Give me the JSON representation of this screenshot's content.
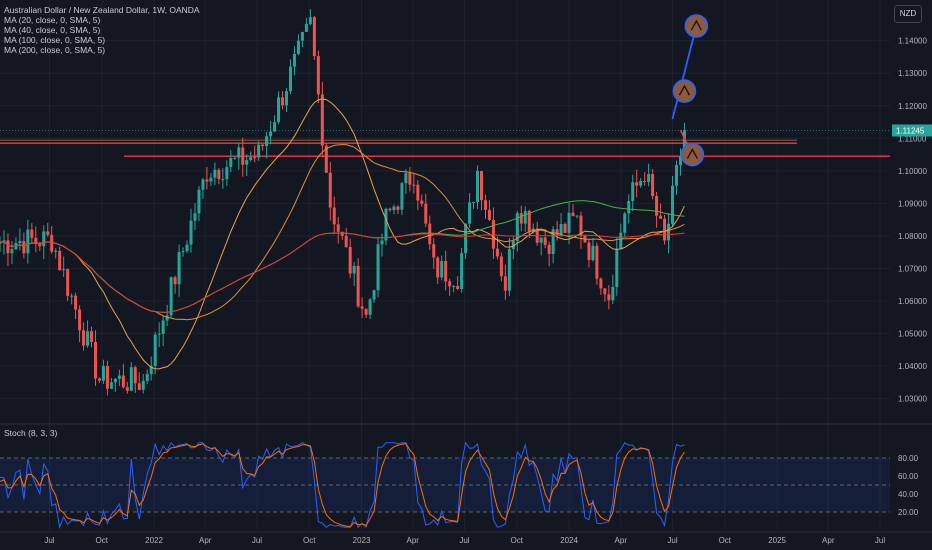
{
  "header": {
    "title": "Australian Dollar / New Zealand Dollar, 1W, OANDA",
    "indicators": [
      "MA (20, close, 0, SMA, 5)",
      "MA (40, close, 0, SMA, 5)",
      "MA (100, close, 0, SMA, 5)",
      "MA (200, close, 0, SMA, 5)"
    ],
    "currency": "NZD"
  },
  "stoch": {
    "label": "Stoch (8, 3, 3)",
    "ticks": [
      "80.00",
      "60.00",
      "40.00",
      "20.00"
    ]
  },
  "colors": {
    "background": "#131722",
    "up": "#26a69a",
    "down": "#ef5350",
    "ma20": "#e8a24b",
    "ma40": "#e08e3a",
    "ma100": "#4caf50",
    "ma200": "#e53935",
    "stoch_k": "#2962ff",
    "stoch_d": "#ff6d00",
    "projection": "#2962ff",
    "level": "#f23645"
  },
  "chart_data": {
    "type": "candlestick",
    "symbol": "AUDNZD",
    "interval": "1W",
    "current_price_label": "1.11245",
    "ylim": [
      1.0225,
      1.1525
    ],
    "price_ticks": [
      "1.14000",
      "1.13000",
      "1.12000",
      "1.11000",
      "1.10000",
      "1.09000",
      "1.08000",
      "1.07000",
      "1.06000",
      "1.05000",
      "1.04000",
      "1.03000"
    ],
    "time_labels": [
      "Jul",
      "Oct",
      "2022",
      "Apr",
      "Jul",
      "Oct",
      "2023",
      "Apr",
      "Jul",
      "Oct",
      "2024",
      "Apr",
      "Jul",
      "Oct",
      "2025",
      "Apr",
      "Jul"
    ],
    "horizontal_levels": [
      1.1085,
      1.1045
    ],
    "projection_path": [
      {
        "date": "2024-07-15",
        "price": 1.1125
      },
      {
        "date": "2024-08-05",
        "price": 1.105
      },
      {
        "date": "2024-07-22",
        "price": 1.1245
      },
      {
        "date": "2024-08-12",
        "price": 1.1445
      }
    ],
    "anchors": [
      {
        "date": "2021-04-05",
        "price": 1.078
      },
      {
        "date": "2021-07-05",
        "price": 1.079
      },
      {
        "date": "2021-09-27",
        "price": 1.036
      },
      {
        "date": "2021-12-13",
        "price": 1.035
      },
      {
        "date": "2022-04-04",
        "price": 1.1
      },
      {
        "date": "2022-07-04",
        "price": 1.105
      },
      {
        "date": "2022-10-03",
        "price": 1.145
      },
      {
        "date": "2022-11-07",
        "price": 1.09
      },
      {
        "date": "2023-01-09",
        "price": 1.055
      },
      {
        "date": "2023-02-13",
        "price": 1.085
      },
      {
        "date": "2023-04-03",
        "price": 1.1
      },
      {
        "date": "2023-05-08",
        "price": 1.07
      },
      {
        "date": "2023-06-19",
        "price": 1.068
      },
      {
        "date": "2023-07-24",
        "price": 1.1
      },
      {
        "date": "2023-09-11",
        "price": 1.065
      },
      {
        "date": "2023-10-02",
        "price": 1.09
      },
      {
        "date": "2023-11-20",
        "price": 1.078
      },
      {
        "date": "2024-01-15",
        "price": 1.085
      },
      {
        "date": "2024-03-11",
        "price": 1.062
      },
      {
        "date": "2024-04-08",
        "price": 1.088
      },
      {
        "date": "2024-05-13",
        "price": 1.1
      },
      {
        "date": "2024-06-17",
        "price": 1.077
      },
      {
        "date": "2024-07-22",
        "price": 1.1125
      }
    ]
  }
}
